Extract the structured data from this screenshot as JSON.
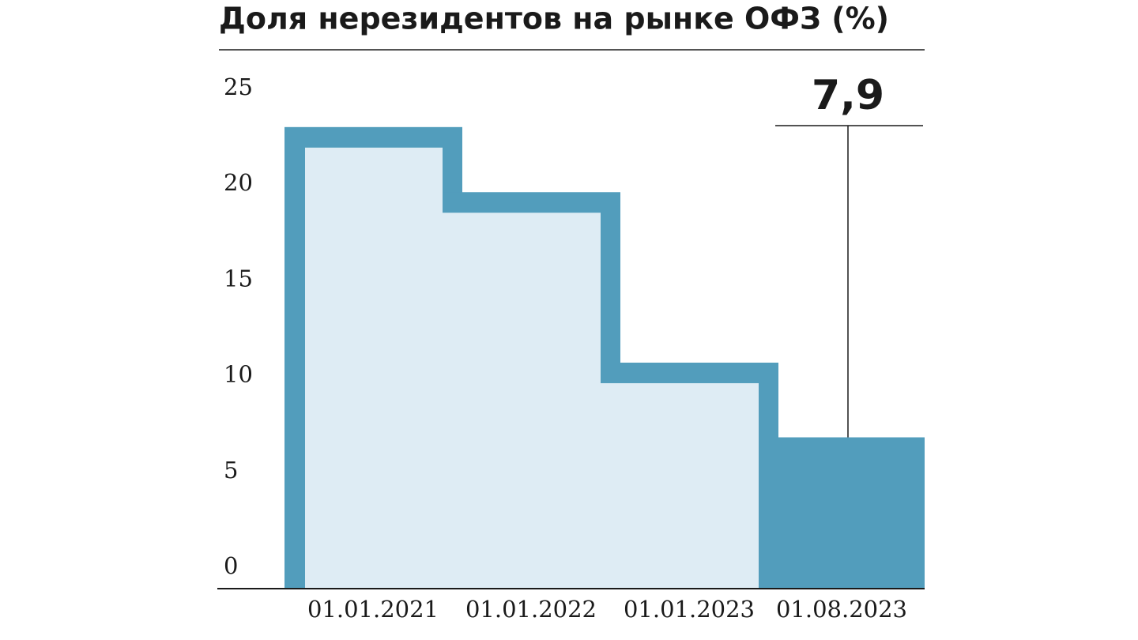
{
  "chart_data": {
    "type": "step",
    "title": "Доля нерезидентов на рынке ОФЗ (%)",
    "categories": [
      "01.01.2021",
      "01.01.2022",
      "01.01.2023",
      "01.08.2023"
    ],
    "values": [
      24.1,
      20.7,
      11.8,
      7.9
    ],
    "value_labels": [
      null,
      null,
      null,
      "7,9"
    ],
    "color": "#529dbc",
    "fill_color": "#deecf4",
    "ylim": [
      0,
      25
    ],
    "yticks": [
      0,
      5,
      10,
      15,
      20,
      25
    ]
  }
}
